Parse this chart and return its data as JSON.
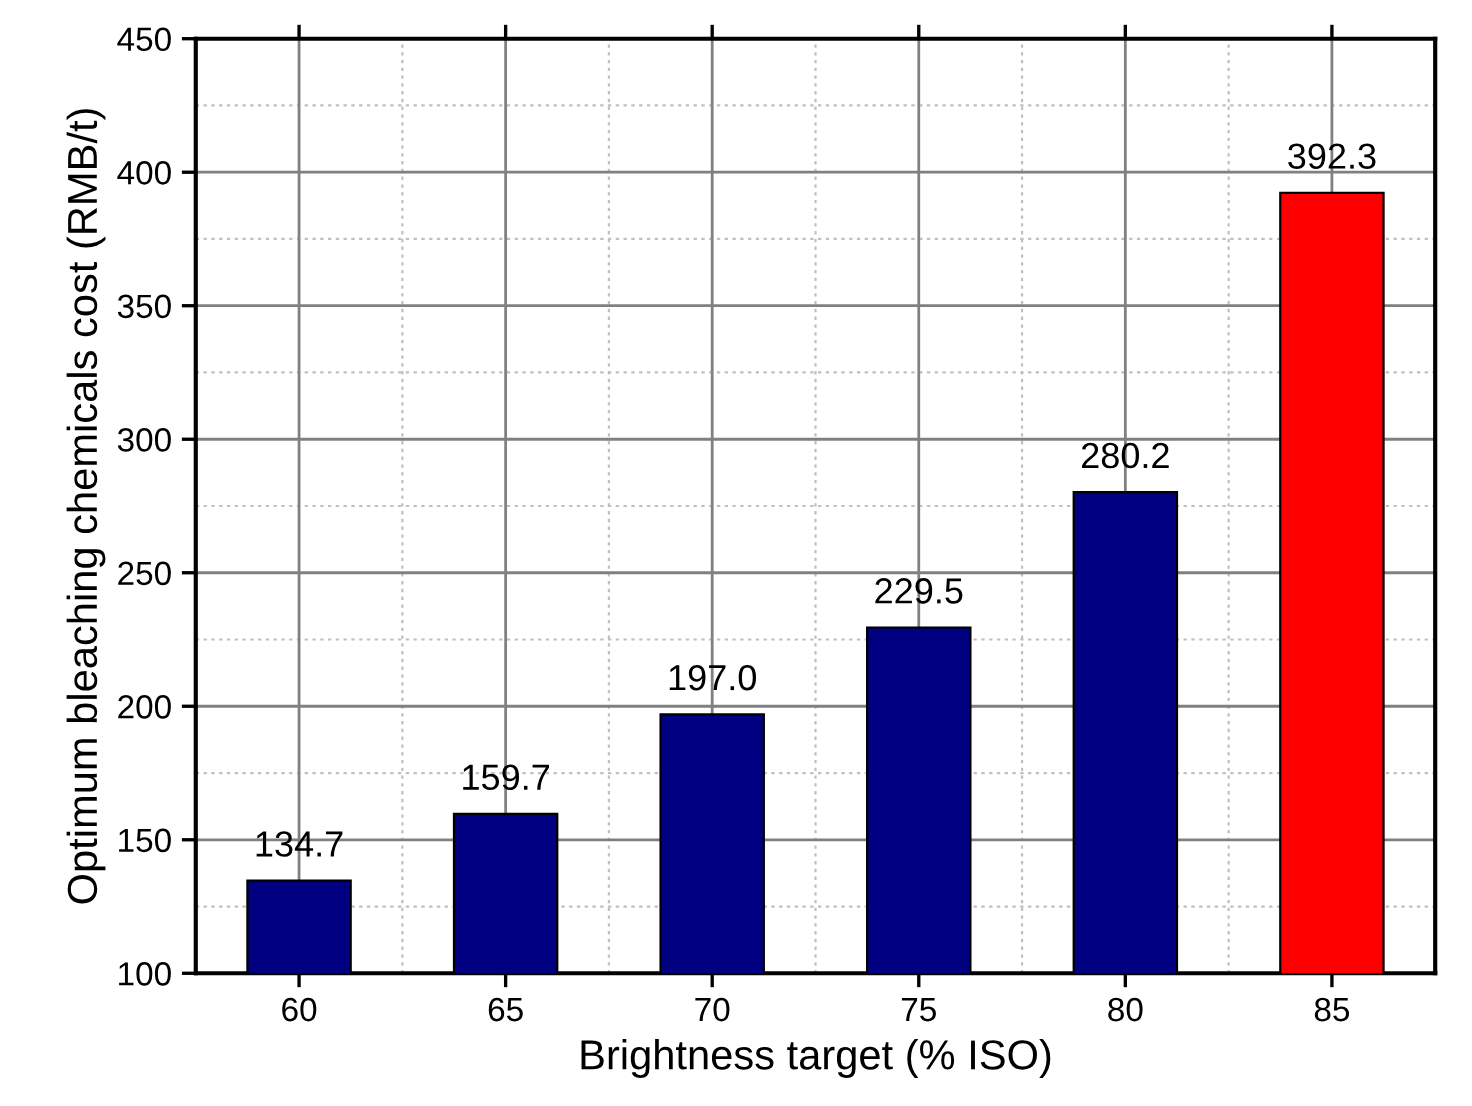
{
  "chart_data": {
    "type": "bar",
    "xlabel": "Brightness target (% ISO)",
    "ylabel": "Optimum bleaching chemicals cost (RMB/t)",
    "categories": [
      "60",
      "65",
      "70",
      "75",
      "80",
      "85"
    ],
    "values": [
      134.7,
      159.7,
      197.0,
      229.5,
      280.2,
      392.3
    ],
    "colors": [
      "#000080",
      "#000080",
      "#000080",
      "#000080",
      "#000080",
      "#ff0000"
    ],
    "value_labels": [
      "134.7",
      "159.7",
      "197.0",
      "229.5",
      "280.2",
      "392.3"
    ],
    "ylim": [
      100,
      450
    ],
    "yticks": [
      100,
      150,
      200,
      250,
      300,
      350,
      400,
      450
    ],
    "grid": true
  }
}
